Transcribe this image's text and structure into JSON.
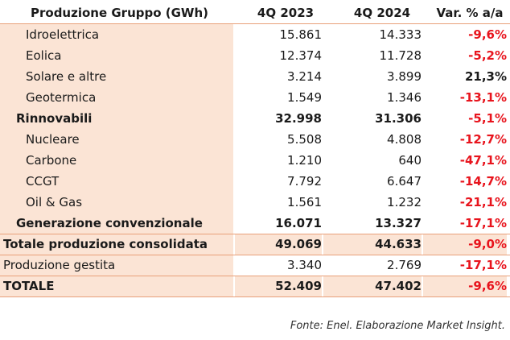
{
  "header": {
    "label": "Produzione Gruppo (GWh)",
    "col1": "4Q 2023",
    "col2": "4Q 2024",
    "col3": "Var. % a/a"
  },
  "rows": [
    {
      "label": "Idroelettrica",
      "v1": "15.861",
      "v2": "14.333",
      "var": "-9,6%"
    },
    {
      "label": "Eolica",
      "v1": "12.374",
      "v2": "11.728",
      "var": "-5,2%"
    },
    {
      "label": "Solare e altre",
      "v1": "3.214",
      "v2": "3.899",
      "var": "21,3%"
    },
    {
      "label": "Geotermica",
      "v1": "1.549",
      "v2": "1.346",
      "var": "-13,1%"
    },
    {
      "label": "Rinnovabili",
      "v1": "32.998",
      "v2": "31.306",
      "var": "-5,1%"
    },
    {
      "label": "Nucleare",
      "v1": "5.508",
      "v2": "4.808",
      "var": "-12,7%"
    },
    {
      "label": "Carbone",
      "v1": "1.210",
      "v2": "640",
      "var": "-47,1%"
    },
    {
      "label": "CCGT",
      "v1": "7.792",
      "v2": "6.647",
      "var": "-14,7%"
    },
    {
      "label": "Oil & Gas",
      "v1": "1.561",
      "v2": "1.232",
      "var": "-21,1%"
    },
    {
      "label": "Generazione convenzionale",
      "v1": "16.071",
      "v2": "13.327",
      "var": "-17,1%"
    },
    {
      "label": "Totale produzione consolidata",
      "v1": "49.069",
      "v2": "44.633",
      "var": "-9,0%"
    },
    {
      "label": "Produzione gestita",
      "v1": "3.340",
      "v2": "2.769",
      "var": "-17,1%"
    },
    {
      "label": "TOTALE",
      "v1": "52.409",
      "v2": "47.402",
      "var": "-9,6%"
    }
  ],
  "source": "Fonte: Enel. Elaborazione Market Insight.",
  "colors": {
    "negative": "#e8141d",
    "peach": "#fbe4d5",
    "rule": "#e8a07a"
  }
}
